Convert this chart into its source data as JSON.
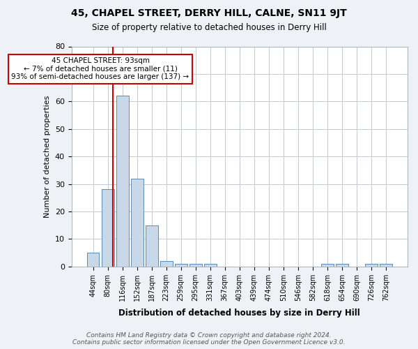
{
  "title": "45, CHAPEL STREET, DERRY HILL, CALNE, SN11 9JT",
  "subtitle": "Size of property relative to detached houses in Derry Hill",
  "xlabel": "Distribution of detached houses by size in Derry Hill",
  "ylabel": "Number of detached properties",
  "bins": [
    "44sqm",
    "80sqm",
    "116sqm",
    "152sqm",
    "187sqm",
    "223sqm",
    "259sqm",
    "295sqm",
    "331sqm",
    "367sqm",
    "403sqm",
    "439sqm",
    "474sqm",
    "510sqm",
    "546sqm",
    "582sqm",
    "618sqm",
    "654sqm",
    "690sqm",
    "726sqm",
    "762sqm"
  ],
  "values": [
    5,
    28,
    62,
    32,
    15,
    2,
    1,
    1,
    1,
    0,
    0,
    0,
    0,
    0,
    0,
    0,
    1,
    1,
    0,
    1,
    1
  ],
  "bar_color": "#c8d8e8",
  "bar_edge_color": "#5a8ab5",
  "subject_line_color": "#cc0000",
  "ylim": [
    0,
    80
  ],
  "yticks": [
    0,
    10,
    20,
    30,
    40,
    50,
    60,
    70,
    80
  ],
  "annotation_text": "45 CHAPEL STREET: 93sqm\n← 7% of detached houses are smaller (11)\n93% of semi-detached houses are larger (137) →",
  "annotation_box_color": "#ffffff",
  "annotation_box_edge_color": "#cc0000",
  "footer_line1": "Contains HM Land Registry data © Crown copyright and database right 2024.",
  "footer_line2": "Contains public sector information licensed under the Open Government Licence v3.0.",
  "background_color": "#eef2f6",
  "plot_background_color": "#ffffff",
  "grid_color": "#c0cad4"
}
